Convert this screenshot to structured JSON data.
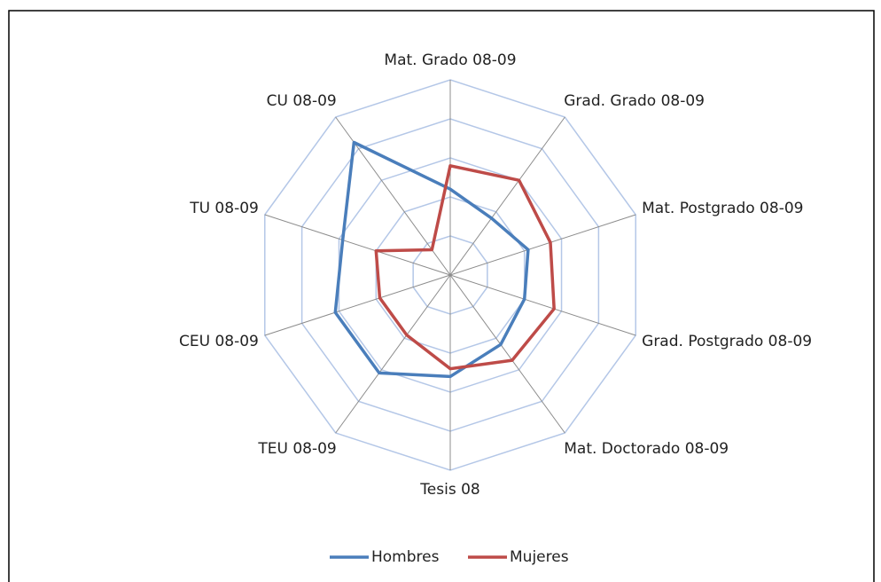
{
  "chart_data": {
    "type": "radar",
    "categories": [
      "Mat. Grado 08-09",
      "Grad. Grado 08-09",
      "Mat. Postgrado 08-09",
      "Grad. Postgrado 08-09",
      "Mat. Doctorado 08-09",
      "Tesis 08",
      "TEU 08-09",
      "CEU 08-09",
      "TU 08-09",
      "CU 08-09"
    ],
    "series": [
      {
        "name": "Hombres",
        "color": "#4a7ebb",
        "values": [
          2.2,
          1.8,
          2.1,
          2.0,
          2.2,
          2.6,
          3.1,
          3.1,
          2.9,
          4.2
        ]
      },
      {
        "name": "Mujeres",
        "color": "#be4b48",
        "values": [
          2.8,
          3.0,
          2.7,
          2.8,
          2.7,
          2.4,
          1.9,
          1.9,
          2.0,
          0.8
        ]
      }
    ],
    "rlim": [
      0,
      5
    ],
    "rticks": [
      1,
      2,
      3,
      4,
      5
    ],
    "grid": true,
    "legend": "bottom"
  }
}
